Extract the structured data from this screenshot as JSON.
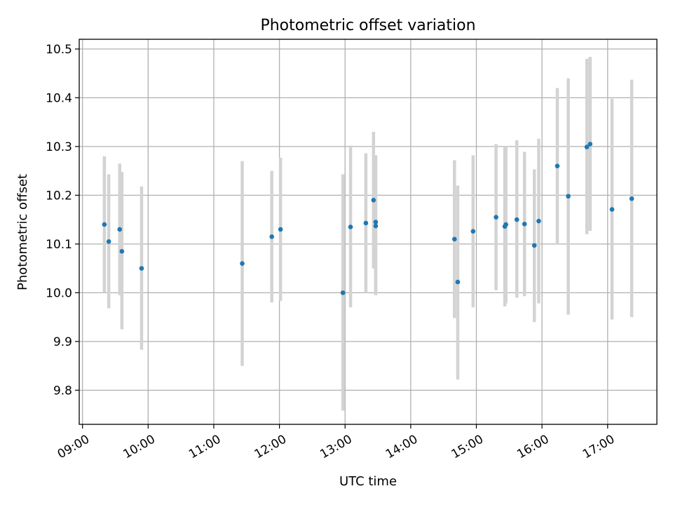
{
  "chart_data": {
    "type": "scatter",
    "title": "Photometric offset variation",
    "xlabel": "UTC time",
    "ylabel": "Photometric offset",
    "x_axis_kind": "time-of-day",
    "xlim": [
      "08:57",
      "17:45"
    ],
    "ylim": [
      9.73,
      10.52
    ],
    "x_ticks": [
      "09:00",
      "10:00",
      "11:00",
      "12:00",
      "13:00",
      "14:00",
      "15:00",
      "16:00",
      "17:00"
    ],
    "y_ticks": [
      "9.8",
      "9.9",
      "10.0",
      "10.1",
      "10.2",
      "10.3",
      "10.4",
      "10.5"
    ],
    "grid": true,
    "point_color": "#1f77b4",
    "errorbar_color": "#d3d3d3",
    "points": [
      {
        "x": "09:20",
        "y": 10.14,
        "ylow": 10.0,
        "yhigh": 10.28
      },
      {
        "x": "09:24",
        "y": 10.105,
        "ylow": 9.968,
        "yhigh": 10.243
      },
      {
        "x": "09:34",
        "y": 10.13,
        "ylow": 9.995,
        "yhigh": 10.265
      },
      {
        "x": "09:36",
        "y": 10.085,
        "ylow": 9.925,
        "yhigh": 10.248
      },
      {
        "x": "09:54",
        "y": 10.05,
        "ylow": 9.883,
        "yhigh": 10.218
      },
      {
        "x": "11:26",
        "y": 10.06,
        "ylow": 9.85,
        "yhigh": 10.27
      },
      {
        "x": "11:53",
        "y": 10.115,
        "ylow": 9.98,
        "yhigh": 10.25
      },
      {
        "x": "12:01",
        "y": 10.13,
        "ylow": 9.983,
        "yhigh": 10.277
      },
      {
        "x": "12:58",
        "y": 10.0,
        "ylow": 9.758,
        "yhigh": 10.243
      },
      {
        "x": "13:05",
        "y": 10.135,
        "ylow": 9.97,
        "yhigh": 10.302
      },
      {
        "x": "13:19",
        "y": 10.143,
        "ylow": 10.0,
        "yhigh": 10.286
      },
      {
        "x": "13:26",
        "y": 10.19,
        "ylow": 10.05,
        "yhigh": 10.33
      },
      {
        "x": "13:28",
        "y": 10.145,
        "ylow": 9.995,
        "yhigh": 10.282
      },
      {
        "x": "13:28",
        "y": 10.137,
        "ylow": 10.0,
        "yhigh": 10.28
      },
      {
        "x": "14:40",
        "y": 10.11,
        "ylow": 9.948,
        "yhigh": 10.272
      },
      {
        "x": "14:43",
        "y": 10.022,
        "ylow": 9.822,
        "yhigh": 10.22
      },
      {
        "x": "14:57",
        "y": 10.126,
        "ylow": 9.97,
        "yhigh": 10.282
      },
      {
        "x": "15:18",
        "y": 10.155,
        "ylow": 10.005,
        "yhigh": 10.305
      },
      {
        "x": "15:26",
        "y": 10.136,
        "ylow": 9.972,
        "yhigh": 10.298
      },
      {
        "x": "15:27",
        "y": 10.14,
        "ylow": 9.978,
        "yhigh": 10.3
      },
      {
        "x": "15:37",
        "y": 10.15,
        "ylow": 9.99,
        "yhigh": 10.313
      },
      {
        "x": "15:44",
        "y": 10.141,
        "ylow": 9.993,
        "yhigh": 10.289
      },
      {
        "x": "15:53",
        "y": 10.097,
        "ylow": 9.94,
        "yhigh": 10.253
      },
      {
        "x": "15:57",
        "y": 10.147,
        "ylow": 9.978,
        "yhigh": 10.316
      },
      {
        "x": "16:14",
        "y": 10.26,
        "ylow": 10.1,
        "yhigh": 10.42
      },
      {
        "x": "16:24",
        "y": 10.198,
        "ylow": 9.955,
        "yhigh": 10.44
      },
      {
        "x": "16:41",
        "y": 10.299,
        "ylow": 10.12,
        "yhigh": 10.48
      },
      {
        "x": "16:44",
        "y": 10.305,
        "ylow": 10.127,
        "yhigh": 10.484
      },
      {
        "x": "17:04",
        "y": 10.171,
        "ylow": 9.945,
        "yhigh": 10.398
      },
      {
        "x": "17:22",
        "y": 10.193,
        "ylow": 9.95,
        "yhigh": 10.437
      }
    ]
  }
}
